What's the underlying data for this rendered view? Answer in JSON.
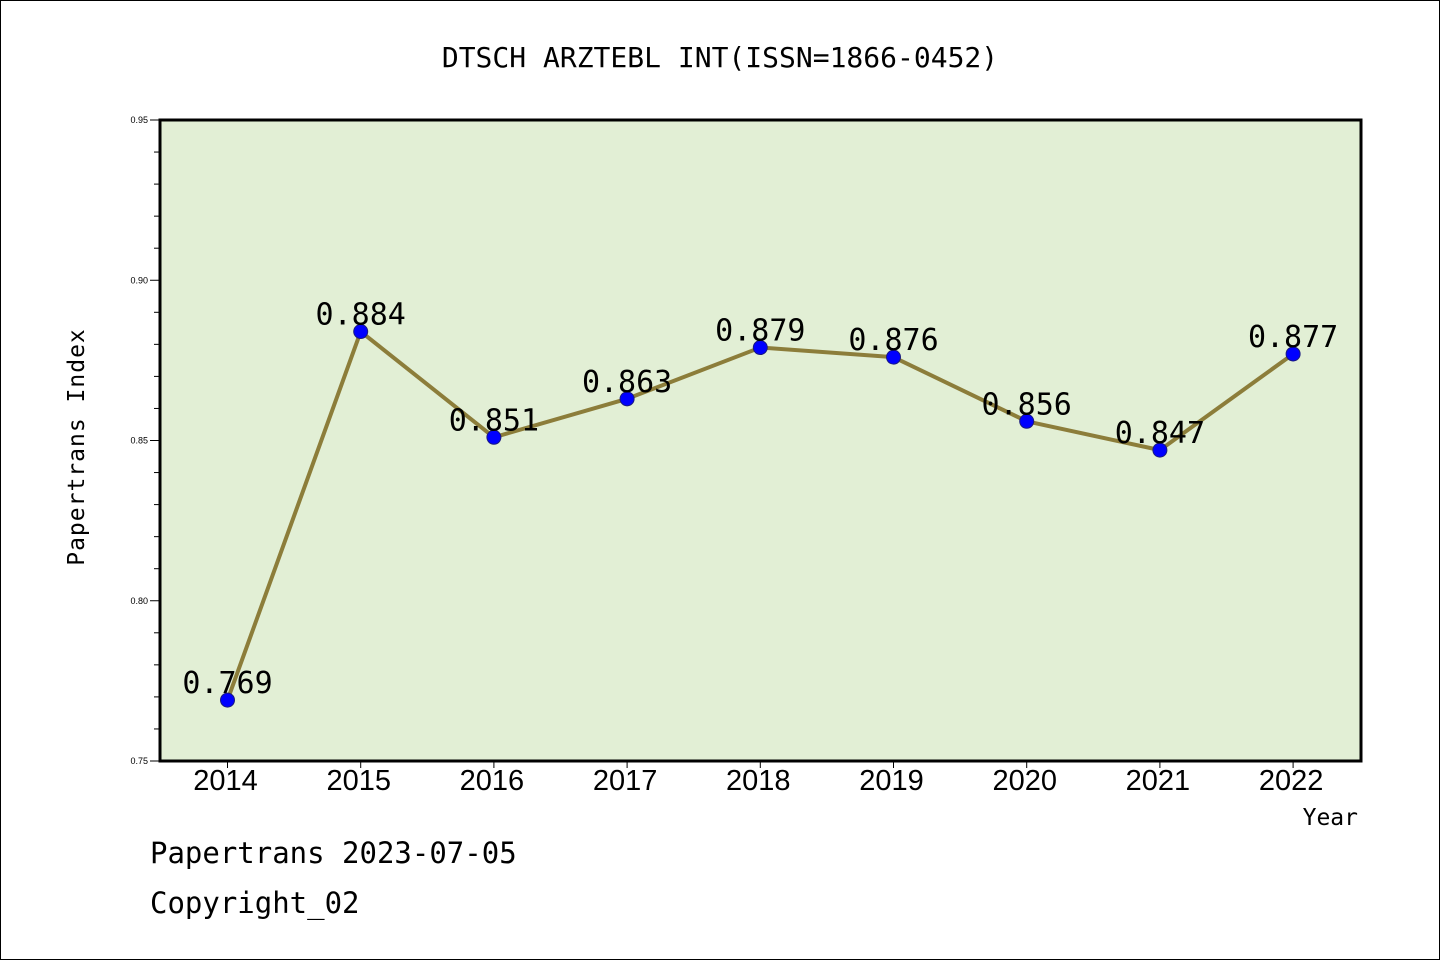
{
  "chart_data": {
    "type": "line",
    "title": "DTSCH ARZTEBL INT(ISSN=1866-0452)",
    "xlabel": "Year",
    "ylabel": "Papertrans Index",
    "categories": [
      "2014",
      "2015",
      "2016",
      "2017",
      "2018",
      "2019",
      "2020",
      "2021",
      "2022"
    ],
    "series": [
      {
        "values": [
          0.769,
          0.884,
          0.851,
          0.863,
          0.879,
          0.876,
          0.856,
          0.847,
          0.877
        ],
        "labels": [
          "0.769",
          "0.884",
          "0.851",
          "0.863",
          "0.879",
          "0.876",
          "0.856",
          "0.847",
          "0.877"
        ],
        "line_color": "#8c7d3a",
        "marker_color": "#0000ff"
      }
    ],
    "ylim": [
      0.75,
      0.95
    ],
    "yticks": [
      "0.75",
      "0.80",
      "0.85",
      "0.90",
      "0.95"
    ],
    "grid": false,
    "plot_background": "#e2efd5"
  },
  "footer": {
    "line1": "Papertrans 2023-07-05",
    "line2": "Copyright_02"
  }
}
